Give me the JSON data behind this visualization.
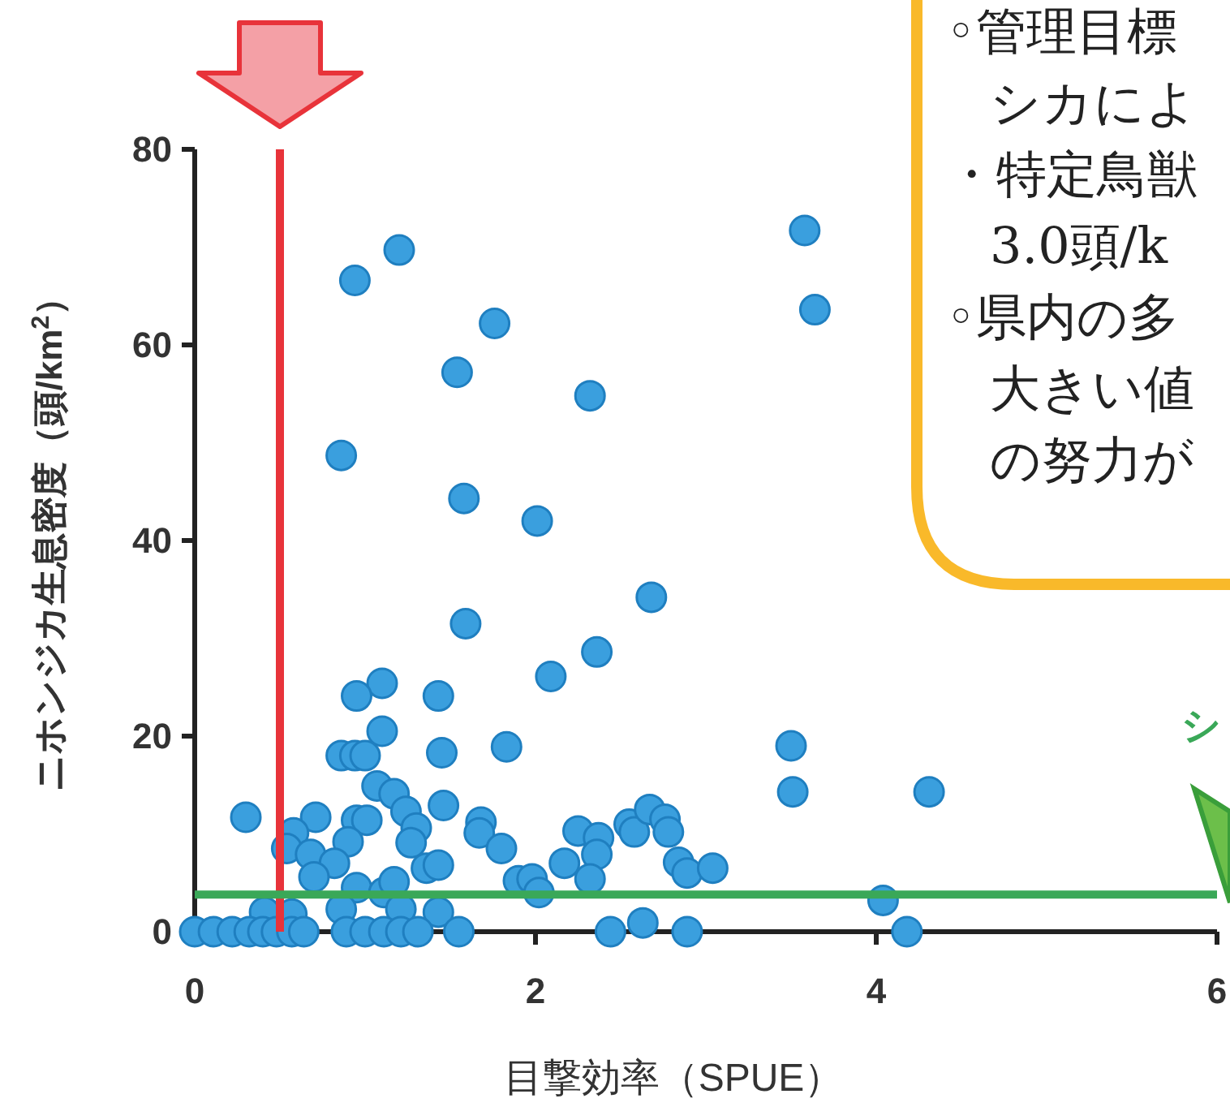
{
  "chart_data": {
    "type": "scatter",
    "xlabel": "目撃効率（SPUE）",
    "ylabel": "ニホンジカ生息密度（頭/km$^{2}$）",
    "xlim": [
      0,
      6
    ],
    "ylim": [
      0,
      80
    ],
    "xticks": [
      0,
      2,
      4,
      6
    ],
    "yticks": [
      0,
      20,
      40,
      60,
      80
    ],
    "marker": "circle",
    "color": "#3a9fde",
    "x": [
      1.2,
      0.94,
      1.76,
      1.54,
      0.86,
      1.58,
      2.01,
      1.59,
      2.09,
      1.1,
      0.95,
      1.43,
      1.1,
      0.86,
      0.94,
      1.0,
      1.45,
      1.83,
      0.3,
      0.71,
      1.07,
      1.17,
      1.24,
      1.46,
      1.3,
      0.58,
      0.95,
      1.01,
      0.9,
      1.27,
      1.68,
      1.67,
      1.8,
      0.54,
      0.68,
      0.82,
      0.7,
      1.36,
      1.43,
      2.17,
      2.25,
      1.9,
      1.98,
      2.02,
      0.95,
      1.11,
      1.17,
      0.41,
      0.57,
      0.86,
      1.21,
      1.43,
      0,
      0.11,
      0.22,
      0.32,
      0.4,
      0.48,
      0.57,
      0.64,
      0.89,
      1.0,
      1.11,
      1.21,
      1.31,
      1.55,
      3.58,
      3.64,
      2.32,
      2.68,
      2.36,
      3.5,
      3.51,
      4.31,
      2.37,
      2.36,
      2.32,
      2.55,
      2.58,
      2.67,
      2.76,
      2.78,
      2.84,
      2.89,
      3.04,
      4.04,
      2.44,
      2.63,
      2.89,
      4.18
    ],
    "values": [
      69.7,
      66.6,
      62.2,
      57.2,
      48.7,
      44.3,
      42.0,
      31.5,
      26.1,
      25.4,
      24.1,
      24.1,
      20.5,
      18.0,
      18.0,
      18.0,
      18.3,
      18.9,
      11.7,
      11.7,
      14.9,
      14.1,
      12.3,
      12.9,
      10.6,
      10.1,
      11.4,
      11.4,
      9.2,
      9.1,
      11.2,
      10.1,
      8.5,
      8.5,
      7.9,
      7.0,
      5.6,
      6.5,
      6.8,
      7.0,
      10.3,
      5.2,
      5.4,
      4.0,
      4.5,
      4.0,
      5.1,
      2.0,
      1.8,
      2.3,
      2.3,
      2.0,
      0,
      0,
      0,
      0,
      0,
      0,
      0,
      0,
      0,
      0,
      0,
      0,
      0,
      0,
      71.7,
      63.6,
      54.8,
      34.2,
      28.6,
      19.0,
      14.3,
      14.3,
      9.6,
      7.9,
      5.4,
      11.0,
      10.2,
      12.5,
      11.5,
      10.2,
      7.1,
      6.0,
      6.5,
      3.2,
      0,
      0.9,
      0,
      0
    ],
    "ref_lines": [
      {
        "axis": "x",
        "value": 0.5,
        "color": "#e8333a"
      },
      {
        "axis": "y",
        "value": 3.8,
        "color": "#3aa858"
      }
    ],
    "annotations": [
      "◦管理目標",
      "シカによ",
      "・特定鳥獣",
      "3.0頭/k",
      "◦県内の多",
      "大きい値",
      "の努力が",
      "シ"
    ]
  }
}
